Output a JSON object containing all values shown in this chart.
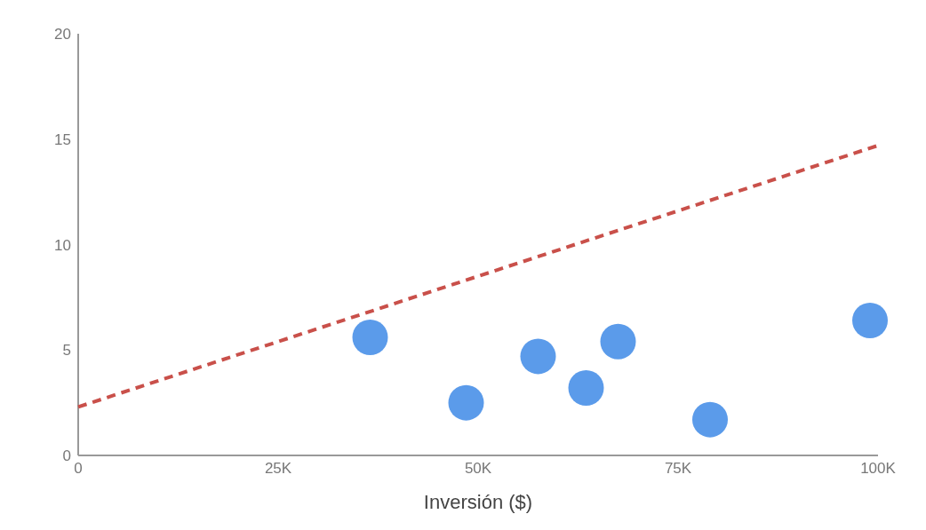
{
  "chart_data": {
    "type": "scatter",
    "xlabel": "Inversión ($)",
    "xlim": [
      0,
      100000
    ],
    "xticks": [
      {
        "value": 0,
        "label": "0"
      },
      {
        "value": 25000,
        "label": "25K"
      },
      {
        "value": 50000,
        "label": "50K"
      },
      {
        "value": 75000,
        "label": "75K"
      },
      {
        "value": 100000,
        "label": "100K"
      }
    ],
    "ylim": [
      0,
      20
    ],
    "yticks": [
      0,
      5,
      10,
      15,
      20
    ],
    "series": [
      {
        "type": "scatter",
        "color": "#5b9bea",
        "marker": "circle",
        "x": [
          36500,
          48500,
          57500,
          63500,
          67500,
          79000,
          99000
        ],
        "values": [
          5.6,
          2.5,
          4.7,
          3.2,
          5.4,
          1.7,
          6.4
        ]
      },
      {
        "type": "line",
        "color": "#c9504a",
        "marker": "none",
        "line_style": "dashed",
        "x": [
          0,
          100000
        ],
        "values": [
          2.3,
          14.7
        ]
      }
    ]
  }
}
